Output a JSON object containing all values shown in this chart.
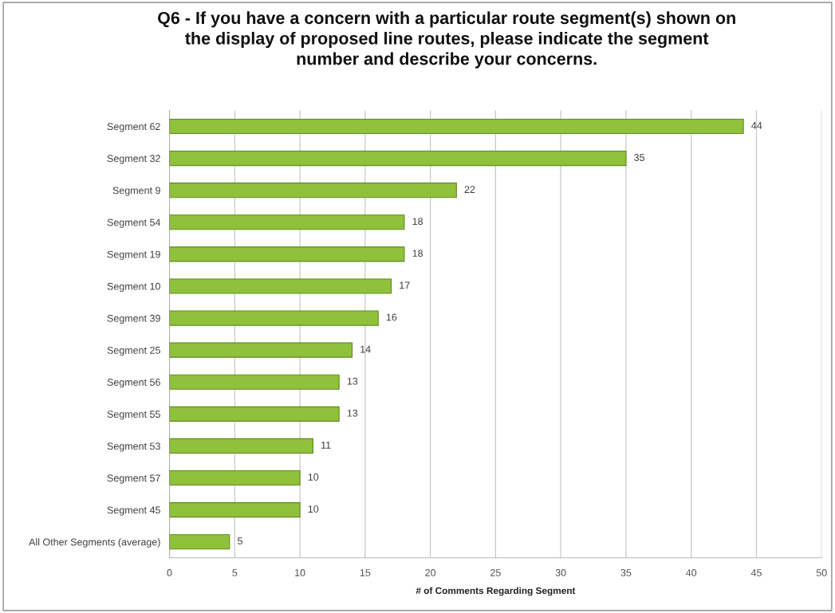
{
  "chart_data": {
    "type": "bar",
    "orientation": "horizontal",
    "title": "Q6 - If you have a concern with a particular route segment(s) shown on\nthe display of proposed line routes, please indicate the segment\nnumber and describe your concerns.",
    "xlabel": "# of Comments Regarding Segment",
    "categories": [
      "Segment 62",
      "Segment 32",
      "Segment 9",
      "Segment 54",
      "Segment 19",
      "Segment 10",
      "Segment 39",
      "Segment 25",
      "Segment 56",
      "Segment 55",
      "Segment 53",
      "Segment 57",
      "Segment 45",
      "All Other Segments (average)"
    ],
    "values": [
      44,
      35,
      22,
      18,
      18,
      17,
      16,
      14,
      13,
      13,
      11,
      10,
      10,
      4.6
    ],
    "value_labels": [
      "44",
      "35",
      "22",
      "18",
      "18",
      "17",
      "16",
      "14",
      "13",
      "13",
      "11",
      "10",
      "10",
      "5"
    ],
    "color": "#8fc23a",
    "xlim": [
      0,
      50
    ],
    "xticks": [
      0,
      5,
      10,
      15,
      20,
      25,
      30,
      35,
      40,
      45,
      50
    ],
    "grid": "x",
    "legend": false
  }
}
